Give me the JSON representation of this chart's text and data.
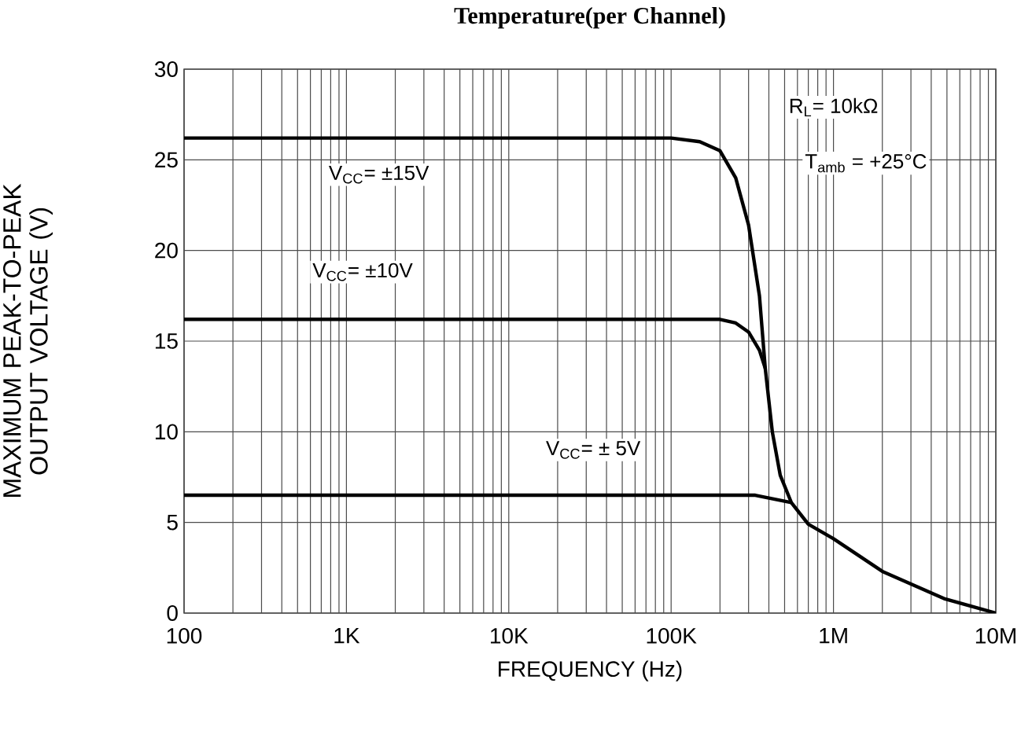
{
  "chart_data": {
    "type": "line",
    "title": "Temperature(per Channel)",
    "xlabel": "FREQUENCY (Hz)",
    "ylabel": "MAXIMUM PEAK-TO-PEAK OUTPUT VOLTAGE (V)",
    "log": "x",
    "xlim": [
      100,
      10000000
    ],
    "xticks": [
      100,
      {
        "value": 1000,
        "label": "1K"
      },
      {
        "value": 10000,
        "label": "10K"
      },
      {
        "value": 100000,
        "label": "100K"
      },
      {
        "value": 1000000,
        "label": "1M"
      },
      {
        "value": 10000000,
        "label": "10M"
      }
    ],
    "ylim": [
      0,
      30
    ],
    "yticks": [
      0,
      5,
      10,
      15,
      20,
      25,
      30
    ],
    "grid": true,
    "marker": "none",
    "line_style": "solid",
    "series": [
      {
        "color": "#000000",
        "x": [
          100,
          100000,
          150000,
          200000,
          250000,
          300000,
          350000,
          380000,
          420000,
          470000,
          550000,
          700000,
          1000000,
          2000000,
          4800000,
          10000000
        ],
        "values": [
          26.2,
          26.2,
          26.0,
          25.5,
          24.0,
          21.4,
          17.5,
          13.5,
          10.0,
          7.6,
          6.1,
          4.9,
          4.1,
          2.3,
          0.8,
          0
        ]
      },
      {
        "color": "#000000",
        "x": [
          100,
          200000,
          250000,
          300000,
          350000,
          380000
        ],
        "values": [
          16.2,
          16.2,
          16.0,
          15.5,
          14.5,
          13.5
        ]
      },
      {
        "color": "#000000",
        "x": [
          100,
          330000,
          550000
        ],
        "values": [
          6.5,
          6.5,
          6.1
        ]
      }
    ],
    "annotations": [
      "V$_{CC}$= ±15V",
      "V$_{CC}$= ±10V",
      "V$_{CC}$= ± 5V",
      "R$_{L}$= 10kΩ",
      "T$_{amb}$ = +25°C"
    ]
  }
}
